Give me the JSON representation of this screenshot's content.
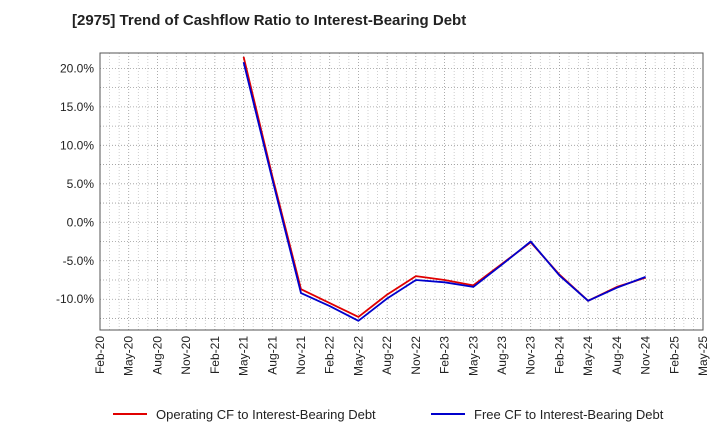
{
  "chart_data": {
    "type": "line",
    "title": "[2975]  Trend of Cashflow Ratio to Interest-Bearing Debt",
    "x": [
      "Feb-20",
      "May-20",
      "Aug-20",
      "Nov-20",
      "Feb-21",
      "May-21",
      "Aug-21",
      "Nov-21",
      "Feb-22",
      "May-22",
      "Aug-22",
      "Nov-22",
      "Feb-23",
      "May-23",
      "Aug-23",
      "Nov-23",
      "Feb-24",
      "May-24",
      "Aug-24",
      "Nov-24",
      "Feb-25",
      "May-25"
    ],
    "ylim": [
      -14,
      22
    ],
    "yticks": [
      20,
      15,
      10,
      5,
      0,
      -5,
      -10
    ],
    "ytick_labels": [
      "20.0%",
      "15.0%",
      "10.0%",
      "5.0%",
      "0.0%",
      "-5.0%",
      "-10.0%"
    ],
    "grid": true,
    "legend_position": "bottom",
    "series": [
      {
        "name": "Operating CF to Interest-Bearing Debt",
        "color": "#e00000",
        "values": [
          null,
          null,
          null,
          null,
          null,
          21.5,
          6.0,
          -8.7,
          -10.5,
          -12.3,
          -9.4,
          -7.0,
          -7.5,
          -8.2,
          -5.4,
          -2.6,
          -6.8,
          -10.2,
          -8.4,
          -7.2,
          null,
          null
        ]
      },
      {
        "name": "Free CF to Interest-Bearing Debt",
        "color": "#0000cc",
        "values": [
          null,
          null,
          null,
          null,
          null,
          20.8,
          5.6,
          -9.2,
          -10.9,
          -12.8,
          -9.9,
          -7.5,
          -7.8,
          -8.4,
          -5.5,
          -2.5,
          -6.9,
          -10.2,
          -8.5,
          -7.1,
          null,
          null
        ]
      }
    ]
  }
}
